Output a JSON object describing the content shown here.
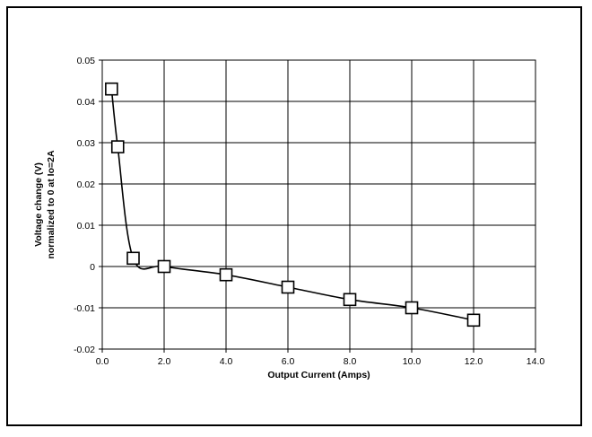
{
  "chart_data": {
    "type": "line",
    "title": "",
    "xlabel": "Output Current (Amps)",
    "ylabel_lines": [
      "Voltage change (V)",
      "normalized to 0 at Io=2A"
    ],
    "xlim": [
      0,
      14
    ],
    "ylim": [
      -0.02,
      0.05
    ],
    "x_ticks": [
      0,
      2,
      4,
      6,
      8,
      10,
      12,
      14
    ],
    "x_tick_labels": [
      "0.0",
      "2.0",
      "4.0",
      "6.0",
      "8.0",
      "10.0",
      "12.0",
      "14.0"
    ],
    "y_ticks": [
      -0.02,
      -0.01,
      0,
      0.01,
      0.02,
      0.03,
      0.04,
      0.05
    ],
    "y_tick_labels": [
      "-0.02",
      "-0.01",
      "0",
      "0.01",
      "0.02",
      "0.03",
      "0.04",
      "0.05"
    ],
    "grid": true,
    "legend": "none",
    "marker": "open-square",
    "line_color": "#000000",
    "series": [
      {
        "x": [
          0.3,
          0.5,
          1.0,
          2.0,
          4.0,
          6.0,
          8.0,
          10.0,
          12.0
        ],
        "y": [
          0.043,
          0.029,
          0.002,
          0.0,
          -0.002,
          -0.005,
          -0.008,
          -0.01,
          -0.013
        ]
      }
    ]
  }
}
